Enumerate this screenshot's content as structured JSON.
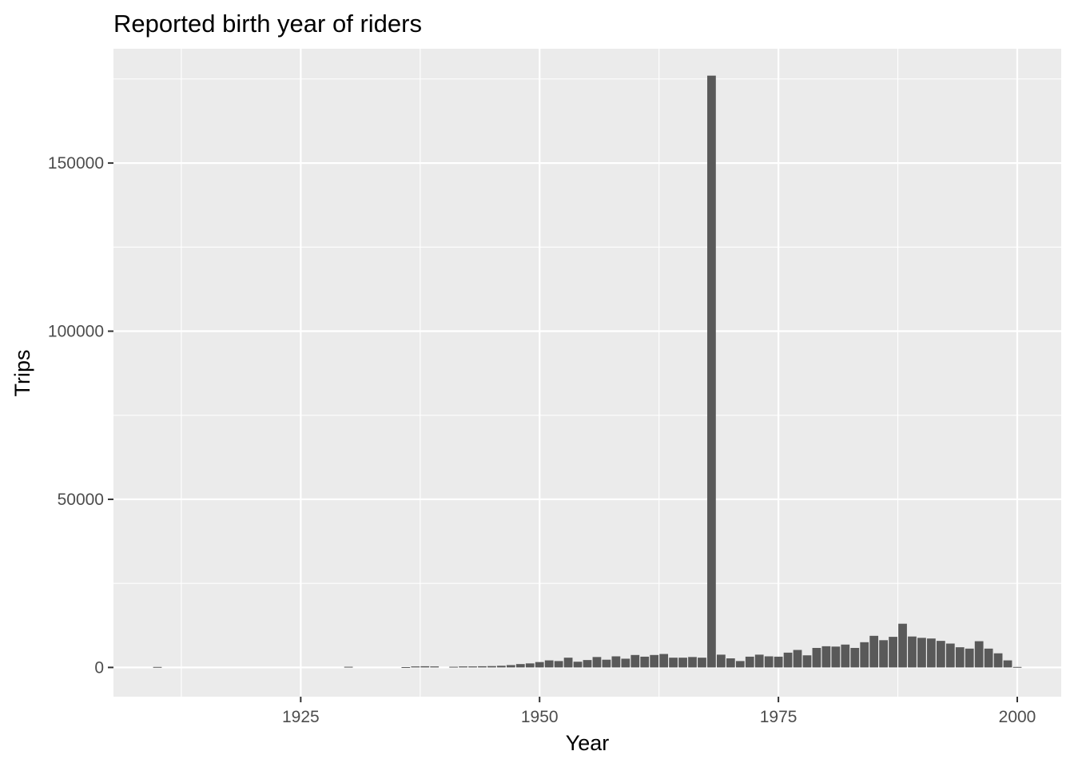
{
  "chart_data": {
    "type": "bar",
    "title": "Reported birth year of riders",
    "xlabel": "Year",
    "ylabel": "Trips",
    "xlim": [
      1905.4,
      2004.6
    ],
    "ylim": [
      -8700,
      184000
    ],
    "x_ticks": [
      1925,
      1950,
      1975,
      2000
    ],
    "x_tick_labels": [
      "1925",
      "1950",
      "1975",
      "2000"
    ],
    "y_ticks": [
      0,
      50000,
      100000,
      150000
    ],
    "y_tick_labels": [
      "0",
      "50000",
      "100000",
      "150000"
    ],
    "grid": true,
    "legend": "none",
    "bar_color": "#595959",
    "panel_color": "#ebebeb",
    "x": [
      1910,
      1930,
      1936,
      1937,
      1938,
      1939,
      1941,
      1942,
      1943,
      1944,
      1945,
      1946,
      1947,
      1948,
      1949,
      1950,
      1951,
      1952,
      1953,
      1954,
      1955,
      1956,
      1957,
      1958,
      1959,
      1960,
      1961,
      1962,
      1963,
      1964,
      1965,
      1966,
      1967,
      1968,
      1969,
      1970,
      1971,
      1972,
      1973,
      1974,
      1975,
      1976,
      1977,
      1978,
      1979,
      1980,
      1981,
      1982,
      1983,
      1984,
      1985,
      1986,
      1987,
      1988,
      1989,
      1990,
      1991,
      1992,
      1993,
      1994,
      1995,
      1996,
      1997,
      1998,
      1999,
      2000
    ],
    "values": [
      150,
      200,
      100,
      300,
      350,
      300,
      200,
      300,
      300,
      350,
      400,
      500,
      700,
      1000,
      1200,
      1600,
      2100,
      1900,
      2900,
      1700,
      2200,
      3100,
      2300,
      3300,
      2600,
      3700,
      3200,
      3700,
      4000,
      2900,
      2900,
      3100,
      2900,
      176000,
      3800,
      2700,
      1900,
      3200,
      3800,
      3300,
      3200,
      4400,
      5200,
      3600,
      5800,
      6300,
      6200,
      6800,
      5800,
      7500,
      9400,
      8100,
      9100,
      13000,
      9200,
      8800,
      8600,
      7900,
      7100,
      6000,
      5600,
      7800,
      5600,
      4200,
      2100,
      150
    ]
  }
}
